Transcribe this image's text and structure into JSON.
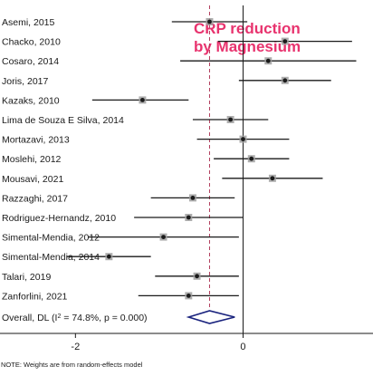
{
  "chart_data": {
    "type": "forest",
    "title_lines": [
      "CRP reduction",
      "by Magnesium"
    ],
    "title_color": "#e8336e",
    "studies": [
      {
        "label": "Asemi, 2015",
        "estimate": -0.4,
        "ci_low": -0.85,
        "ci_high": 0.05
      },
      {
        "label": "Chacko, 2010",
        "estimate": 0.5,
        "ci_low": -0.3,
        "ci_high": 1.3
      },
      {
        "label": "Cosaro, 2014",
        "estimate": 0.3,
        "ci_low": -0.75,
        "ci_high": 1.35
      },
      {
        "label": "Joris, 2017",
        "estimate": 0.5,
        "ci_low": -0.05,
        "ci_high": 1.05
      },
      {
        "label": "Kazaks, 2010",
        "estimate": -1.2,
        "ci_low": -1.8,
        "ci_high": -0.65
      },
      {
        "label": "Lima de Souza E Silva, 2014",
        "estimate": -0.15,
        "ci_low": -0.6,
        "ci_high": 0.3
      },
      {
        "label": "Mortazavi, 2013",
        "estimate": 0.0,
        "ci_low": -0.55,
        "ci_high": 0.55
      },
      {
        "label": "Moslehi, 2012",
        "estimate": 0.1,
        "ci_low": -0.35,
        "ci_high": 0.55
      },
      {
        "label": "Mousavi, 2021",
        "estimate": 0.35,
        "ci_low": -0.25,
        "ci_high": 0.95
      },
      {
        "label": "Razzaghi, 2017",
        "estimate": -0.6,
        "ci_low": -1.1,
        "ci_high": -0.1
      },
      {
        "label": "Rodriguez-Hernandz, 2010",
        "estimate": -0.65,
        "ci_low": -1.3,
        "ci_high": 0.0
      },
      {
        "label": "Simental-Mendia, 2012",
        "estimate": -0.95,
        "ci_low": -1.85,
        "ci_high": -0.05
      },
      {
        "label": "Simental-Mendia, 2014",
        "estimate": -1.6,
        "ci_low": -2.1,
        "ci_high": -1.1
      },
      {
        "label": "Talari, 2019",
        "estimate": -0.55,
        "ci_low": -1.05,
        "ci_high": -0.05
      },
      {
        "label": "Zanforlini, 2021",
        "estimate": -0.65,
        "ci_low": -1.25,
        "ci_high": -0.05
      }
    ],
    "overall": {
      "label": "Overall, DL (I",
      "label_sup": "2",
      "label_rest": " = 74.8%, p = 0.000)",
      "estimate": -0.4,
      "ci_low": -0.65,
      "ci_high": -0.1
    },
    "pooled_estimate_line": -0.4,
    "null_line": 0,
    "xlim": [
      -2.9,
      1.55
    ],
    "x_ticks": [
      -2,
      0
    ],
    "x_tick_labels": [
      "-2",
      "0"
    ],
    "note": "NOTE: Weights are from random-effects model",
    "colors": {
      "ci_line": "#1a1a1a",
      "point": "#1a1a1a",
      "weight_box": "#a0a0a0",
      "pooled_line": "#b03a5a",
      "diamond": "#1a237e",
      "axis": "#1a1a1a"
    }
  }
}
